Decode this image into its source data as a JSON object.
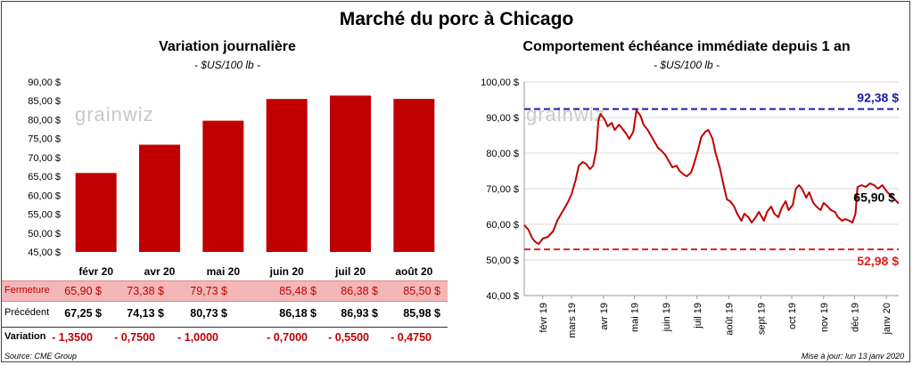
{
  "header": {
    "title": "Marché du porc à Chicago"
  },
  "watermark": "grainwiz",
  "left_panel": {
    "title": "Variation  journalière",
    "unit": "- $US/100 lb -"
  },
  "right_panel": {
    "title": "Comportement  échéance immédiate depuis 1 an",
    "unit": "- $US/100 lb -"
  },
  "table": {
    "rows": [
      {
        "label": "Fermeture",
        "values": [
          "65,90  $",
          "73,38  $",
          "79,73  $",
          "85,48  $",
          "86,38  $",
          "85,50  $"
        ]
      },
      {
        "label": "Précédent",
        "values": [
          "67,25  $",
          "74,13  $",
          "80,73  $",
          "86,18  $",
          "86,93  $",
          "85,98  $"
        ]
      },
      {
        "label": "Variation",
        "values": [
          "- 1,3500",
          "- 0,7500",
          "- 1,0000",
          "- 0,7000",
          "- 0,5500",
          "- 0,4750"
        ]
      }
    ]
  },
  "footer": {
    "source": "Source: CME Group",
    "updated": "Mise à jour: lun 13 janv 2020"
  },
  "colors": {
    "bar": "#c00000",
    "line": "#c00000",
    "high_line": "#1a1aa6",
    "low_line": "#e02020",
    "grid": "#d9d9d9"
  },
  "chart_data": [
    {
      "type": "bar",
      "title": "Variation  journalière",
      "categories": [
        "févr 20",
        "avr 20",
        "mai 20",
        "juin 20",
        "juil 20",
        "août 20"
      ],
      "values": [
        65.9,
        73.38,
        79.73,
        85.48,
        86.38,
        85.5
      ],
      "ylim": [
        45,
        90
      ],
      "yticks": [
        45,
        50,
        55,
        60,
        65,
        70,
        75,
        80,
        85,
        90
      ],
      "ytick_labels": [
        "45,00 $",
        "50,00 $",
        "55,00 $",
        "60,00 $",
        "65,00 $",
        "70,00 $",
        "75,00 $",
        "80,00 $",
        "85,00 $",
        "90,00 $"
      ],
      "grid": false
    },
    {
      "type": "line",
      "title": "Comportement  échéance immédiate depuis 1 an",
      "ylim": [
        40,
        100
      ],
      "yticks": [
        40,
        50,
        60,
        70,
        80,
        90,
        100
      ],
      "ytick_labels": [
        "40,00 $",
        "50,00 $",
        "60,00 $",
        "70,00 $",
        "80,00 $",
        "90,00 $",
        "100,00 $"
      ],
      "x_labels": [
        "févr 19",
        "mars 19",
        "avr 19",
        "mai 19",
        "juin 19",
        "juil 19",
        "août 19",
        "sept 19",
        "oct 19",
        "nov 19",
        "déc 19",
        "janv 20"
      ],
      "x_start": "2019-01-14",
      "x_end": "2020-01-13",
      "x_tick_dates": [
        "2019-02-01",
        "2019-03-01",
        "2019-04-01",
        "2019-05-01",
        "2019-06-01",
        "2019-07-01",
        "2019-08-01",
        "2019-09-01",
        "2019-10-01",
        "2019-11-01",
        "2019-12-01",
        "2020-01-01"
      ],
      "grid": true,
      "series": [
        {
          "points": [
            [
              "2019-01-14",
              59.8
            ],
            [
              "2019-01-18",
              58.5
            ],
            [
              "2019-01-22",
              56.0
            ],
            [
              "2019-01-25",
              55.0
            ],
            [
              "2019-01-28",
              54.5
            ],
            [
              "2019-02-01",
              56.0
            ],
            [
              "2019-02-06",
              56.5
            ],
            [
              "2019-02-11",
              58.0
            ],
            [
              "2019-02-15",
              61.0
            ],
            [
              "2019-02-20",
              63.5
            ],
            [
              "2019-02-25",
              66.0
            ],
            [
              "2019-03-01",
              68.5
            ],
            [
              "2019-03-05",
              72.5
            ],
            [
              "2019-03-08",
              76.5
            ],
            [
              "2019-03-12",
              77.5
            ],
            [
              "2019-03-15",
              77.0
            ],
            [
              "2019-03-19",
              75.5
            ],
            [
              "2019-03-22",
              76.5
            ],
            [
              "2019-03-25",
              81.0
            ],
            [
              "2019-03-27",
              89.0
            ],
            [
              "2019-03-29",
              91.0
            ],
            [
              "2019-04-02",
              89.5
            ],
            [
              "2019-04-05",
              87.5
            ],
            [
              "2019-04-09",
              88.5
            ],
            [
              "2019-04-12",
              86.5
            ],
            [
              "2019-04-16",
              88.0
            ],
            [
              "2019-04-19",
              87.0
            ],
            [
              "2019-04-23",
              85.5
            ],
            [
              "2019-04-26",
              84.0
            ],
            [
              "2019-04-30",
              86.0
            ],
            [
              "2019-05-03",
              92.0
            ],
            [
              "2019-05-07",
              90.5
            ],
            [
              "2019-05-10",
              88.0
            ],
            [
              "2019-05-14",
              86.5
            ],
            [
              "2019-05-17",
              85.0
            ],
            [
              "2019-05-21",
              83.0
            ],
            [
              "2019-05-24",
              81.5
            ],
            [
              "2019-05-28",
              80.5
            ],
            [
              "2019-05-31",
              79.5
            ],
            [
              "2019-06-04",
              77.5
            ],
            [
              "2019-06-07",
              76.0
            ],
            [
              "2019-06-11",
              76.5
            ],
            [
              "2019-06-14",
              75.0
            ],
            [
              "2019-06-18",
              74.0
            ],
            [
              "2019-06-21",
              73.5
            ],
            [
              "2019-06-25",
              74.5
            ],
            [
              "2019-06-28",
              77.0
            ],
            [
              "2019-07-02",
              81.0
            ],
            [
              "2019-07-05",
              84.5
            ],
            [
              "2019-07-09",
              86.0
            ],
            [
              "2019-07-12",
              86.5
            ],
            [
              "2019-07-16",
              84.0
            ],
            [
              "2019-07-19",
              80.0
            ],
            [
              "2019-07-23",
              76.0
            ],
            [
              "2019-07-26",
              72.0
            ],
            [
              "2019-07-30",
              67.0
            ],
            [
              "2019-08-02",
              66.5
            ],
            [
              "2019-08-06",
              65.0
            ],
            [
              "2019-08-09",
              63.0
            ],
            [
              "2019-08-13",
              61.0
            ],
            [
              "2019-08-16",
              63.0
            ],
            [
              "2019-08-20",
              62.0
            ],
            [
              "2019-08-23",
              60.5
            ],
            [
              "2019-08-27",
              62.0
            ],
            [
              "2019-08-30",
              63.5
            ],
            [
              "2019-09-04",
              61.0
            ],
            [
              "2019-09-07",
              63.5
            ],
            [
              "2019-09-11",
              65.0
            ],
            [
              "2019-09-14",
              63.0
            ],
            [
              "2019-09-18",
              62.0
            ],
            [
              "2019-09-21",
              64.5
            ],
            [
              "2019-09-25",
              66.5
            ],
            [
              "2019-09-28",
              64.0
            ],
            [
              "2019-10-02",
              65.5
            ],
            [
              "2019-10-05",
              70.0
            ],
            [
              "2019-10-08",
              71.0
            ],
            [
              "2019-10-11",
              70.0
            ],
            [
              "2019-10-15",
              67.5
            ],
            [
              "2019-10-18",
              69.0
            ],
            [
              "2019-10-22",
              66.0
            ],
            [
              "2019-10-25",
              65.0
            ],
            [
              "2019-10-29",
              64.0
            ],
            [
              "2019-11-01",
              66.0
            ],
            [
              "2019-11-05",
              65.0
            ],
            [
              "2019-11-08",
              64.0
            ],
            [
              "2019-11-12",
              63.5
            ],
            [
              "2019-11-15",
              62.0
            ],
            [
              "2019-11-19",
              61.0
            ],
            [
              "2019-11-22",
              61.5
            ],
            [
              "2019-11-26",
              61.0
            ],
            [
              "2019-11-29",
              60.5
            ],
            [
              "2019-12-02",
              63.0
            ],
            [
              "2019-12-04",
              70.5
            ],
            [
              "2019-12-08",
              71.0
            ],
            [
              "2019-12-12",
              70.5
            ],
            [
              "2019-12-16",
              71.5
            ],
            [
              "2019-12-20",
              71.0
            ],
            [
              "2019-12-24",
              70.0
            ],
            [
              "2019-12-28",
              71.0
            ],
            [
              "2020-01-02",
              69.0
            ],
            [
              "2020-01-06",
              68.0
            ],
            [
              "2020-01-09",
              67.0
            ],
            [
              "2020-01-13",
              65.9
            ]
          ]
        }
      ],
      "reference_lines": [
        {
          "value": 92.38,
          "label": "92,38 $",
          "color": "#1a1aa6"
        },
        {
          "value": 52.98,
          "label": "52,98 $",
          "color": "#e02020"
        }
      ],
      "last_value_label": "65,90 $"
    }
  ]
}
